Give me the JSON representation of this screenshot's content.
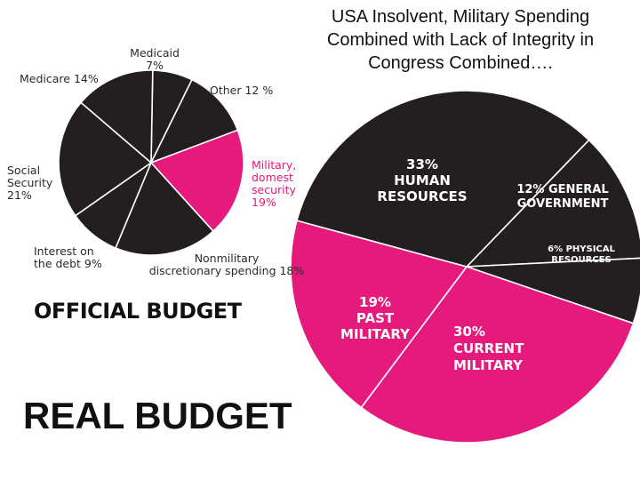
{
  "title_lines": [
    "USA Insolvent, Military Spending",
    "Combined with Lack of Integrity in",
    "Congress Combined…."
  ],
  "captions": {
    "official": "OFFICIAL BUDGET",
    "real": "REAL BUDGET"
  },
  "colors": {
    "dark": "#231f20",
    "highlight": "#e6197c",
    "divider": "#ffffff"
  },
  "chart_data": [
    {
      "type": "pie",
      "caption": "OFFICIAL BUDGET",
      "slices": [
        {
          "name": "Medicaid",
          "value": 7,
          "label_lines": [
            "Medicaid",
            "7%"
          ],
          "highlight": false
        },
        {
          "name": "Other",
          "value": 12,
          "label_lines": [
            "Other 12 %"
          ],
          "highlight": false
        },
        {
          "name": "Military, domest security",
          "value": 19,
          "label_lines": [
            "Military,",
            "domest",
            "security",
            "19%"
          ],
          "highlight": true
        },
        {
          "name": "Nonmilitary discretionary spending",
          "value": 18,
          "label_lines": [
            "Nonmilitary",
            "discretionary spending 18%"
          ],
          "highlight": false
        },
        {
          "name": "Interest on the debt",
          "value": 9,
          "label_lines": [
            "Interest on",
            "the debt 9%"
          ],
          "highlight": false
        },
        {
          "name": "Social Security",
          "value": 21,
          "label_lines": [
            "Social",
            "Security",
            "21%"
          ],
          "highlight": false
        },
        {
          "name": "Medicare",
          "value": 14,
          "label_lines": [
            "Medicare 14%"
          ],
          "highlight": false
        }
      ]
    },
    {
      "type": "pie",
      "caption": "REAL BUDGET",
      "slices": [
        {
          "name": "General Government",
          "value": 12,
          "label_lines": [
            "12% GENERAL",
            "GOVERNMENT"
          ],
          "highlight": false
        },
        {
          "name": "Physical Resources",
          "value": 6,
          "label_lines": [
            "6% PHYSICAL",
            "RESOURCES"
          ],
          "highlight": false
        },
        {
          "name": "Current Military",
          "value": 30,
          "label_lines": [
            "30%",
            "CURRENT",
            "MILITARY"
          ],
          "highlight": true
        },
        {
          "name": "Past Military",
          "value": 19,
          "label_lines": [
            "19%",
            "PAST",
            "MILITARY"
          ],
          "highlight": true
        },
        {
          "name": "Human Resources",
          "value": 33,
          "label_lines": [
            "33%",
            "HUMAN",
            "RESOURCES"
          ],
          "highlight": false
        }
      ]
    }
  ]
}
